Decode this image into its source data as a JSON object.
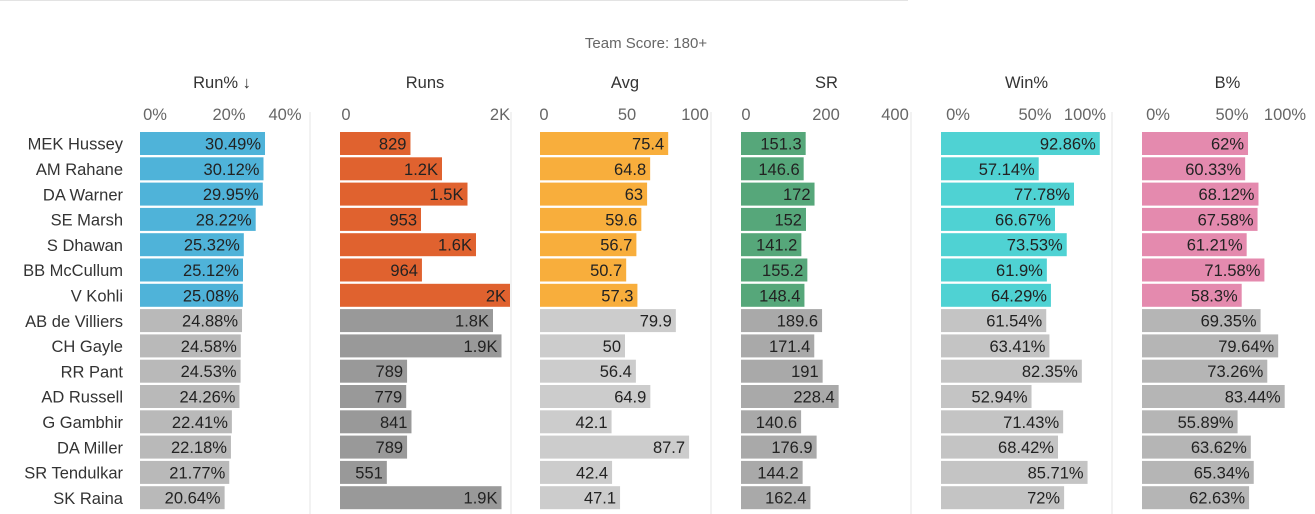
{
  "chart_data": {
    "type": "bar",
    "title": "Team Score: 180+",
    "sort_indicator": "↓",
    "sorted_by": "Run%",
    "players": [
      "MEK Hussey",
      "AM Rahane",
      "DA Warner",
      "SE Marsh",
      "S Dhawan",
      "BB McCullum",
      "V Kohli",
      "AB de Villiers",
      "CH Gayle",
      "RR Pant",
      "AD Russell",
      "G Gambhir",
      "DA Miller",
      "SR Tendulkar",
      "SK Raina"
    ],
    "highlighted_count": 7,
    "metrics": [
      {
        "name": "Run%",
        "color": "#4fb3d9",
        "gray": "#b9b9b9",
        "domain": [
          0,
          40
        ],
        "ticks": [
          0,
          20,
          40
        ],
        "tick_labels": [
          "0%",
          "20%",
          "40%"
        ],
        "values": [
          30.49,
          30.12,
          29.95,
          28.22,
          25.32,
          25.12,
          25.08,
          24.88,
          24.58,
          24.53,
          24.26,
          22.41,
          22.18,
          21.77,
          20.64
        ],
        "labels": [
          "30.49%",
          "30.12%",
          "29.95%",
          "28.22%",
          "25.32%",
          "25.12%",
          "25.08%",
          "24.88%",
          "24.58%",
          "24.53%",
          "24.26%",
          "22.41%",
          "22.18%",
          "21.77%",
          "20.64%"
        ]
      },
      {
        "name": "Runs",
        "color": "#e0622f",
        "gray": "#999999",
        "domain": [
          0,
          2000
        ],
        "ticks": [
          0,
          2000
        ],
        "tick_labels": [
          "0",
          "2K"
        ],
        "values": [
          829,
          1200,
          1500,
          953,
          1600,
          964,
          2000,
          1800,
          1900,
          789,
          779,
          841,
          789,
          551,
          1900
        ],
        "labels": [
          "829",
          "1.2K",
          "1.5K",
          "953",
          "1.6K",
          "964",
          "2K",
          "1.8K",
          "1.9K",
          "789",
          "779",
          "841",
          "789",
          "551",
          "1.9K"
        ]
      },
      {
        "name": "Avg",
        "color": "#f8ae3c",
        "gray": "#cccccc",
        "domain": [
          0,
          100
        ],
        "ticks": [
          0,
          50,
          100
        ],
        "tick_labels": [
          "0",
          "50",
          "100"
        ],
        "values": [
          75.4,
          64.8,
          63,
          59.6,
          56.7,
          50.7,
          57.3,
          79.9,
          50,
          56.4,
          64.9,
          42.1,
          87.7,
          42.4,
          47.1
        ],
        "labels": [
          "75.4",
          "64.8",
          "63",
          "59.6",
          "56.7",
          "50.7",
          "57.3",
          "79.9",
          "50",
          "56.4",
          "64.9",
          "42.1",
          "87.7",
          "42.4",
          "47.1"
        ]
      },
      {
        "name": "SR",
        "color": "#56a77a",
        "gray": "#a9a9a9",
        "domain": [
          0,
          400
        ],
        "ticks": [
          0,
          200,
          400
        ],
        "tick_labels": [
          "0",
          "200",
          "400"
        ],
        "values": [
          151.3,
          146.6,
          172,
          152,
          141.2,
          155.2,
          148.4,
          189.6,
          171.4,
          191,
          228.4,
          140.6,
          176.9,
          144.2,
          162.4
        ],
        "labels": [
          "151.3",
          "146.6",
          "172",
          "152",
          "141.2",
          "155.2",
          "148.4",
          "189.6",
          "171.4",
          "191",
          "228.4",
          "140.6",
          "176.9",
          "144.2",
          "162.4"
        ]
      },
      {
        "name": "Win%",
        "color": "#4fd2d3",
        "gray": "#c4c4c4",
        "domain": [
          0,
          100
        ],
        "ticks": [
          0,
          50,
          100
        ],
        "tick_labels": [
          "0%",
          "50%",
          "100%"
        ],
        "values": [
          92.86,
          57.14,
          77.78,
          66.67,
          73.53,
          61.9,
          64.29,
          61.54,
          63.41,
          82.35,
          52.94,
          71.43,
          68.42,
          85.71,
          72
        ],
        "labels": [
          "92.86%",
          "57.14%",
          "77.78%",
          "66.67%",
          "73.53%",
          "61.9%",
          "64.29%",
          "61.54%",
          "63.41%",
          "82.35%",
          "52.94%",
          "71.43%",
          "68.42%",
          "85.71%",
          "72%"
        ]
      },
      {
        "name": "B%",
        "color": "#e48aae",
        "gray": "#b5b5b5",
        "domain": [
          0,
          100
        ],
        "ticks": [
          0,
          50,
          100
        ],
        "tick_labels": [
          "0%",
          "50%",
          "100%"
        ],
        "values": [
          62,
          60.33,
          68.12,
          67.58,
          61.21,
          71.58,
          58.3,
          69.35,
          79.64,
          73.26,
          83.44,
          55.89,
          63.62,
          65.34,
          62.63
        ],
        "labels": [
          "62%",
          "60.33%",
          "68.12%",
          "67.58%",
          "61.21%",
          "71.58%",
          "58.3%",
          "69.35%",
          "79.64%",
          "73.26%",
          "83.44%",
          "55.89%",
          "63.62%",
          "65.34%",
          "62.63%"
        ]
      }
    ]
  }
}
